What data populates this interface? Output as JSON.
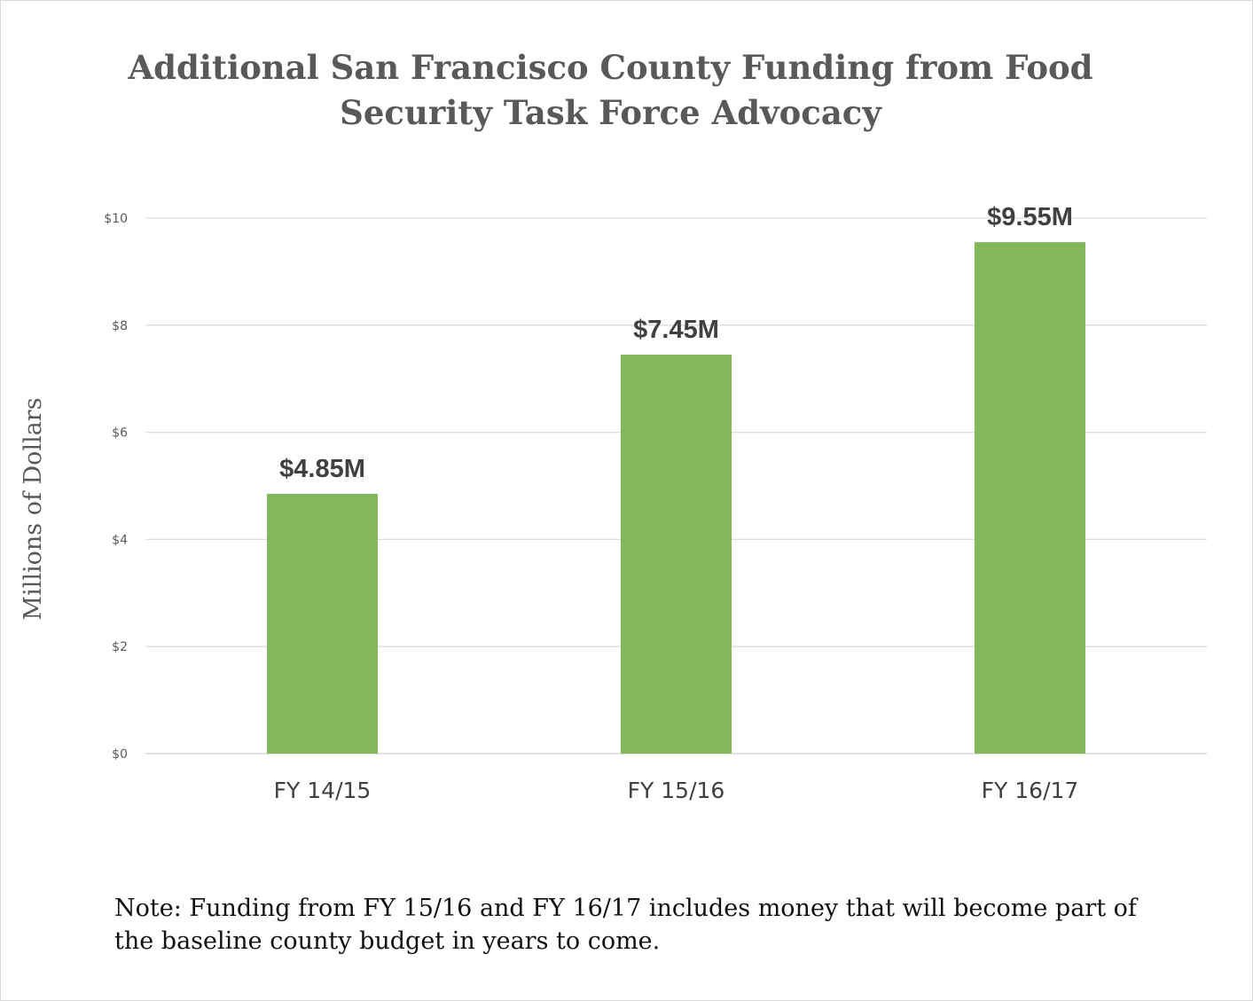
{
  "chart_data": {
    "type": "bar",
    "title": "Additional San Francisco County Funding from Food Security Task Force Advocacy",
    "ylabel": "Millions of Dollars",
    "xlabel": "",
    "categories": [
      "FY 14/15",
      "FY 15/16",
      "FY 16/17"
    ],
    "values": [
      4.85,
      7.45,
      9.55
    ],
    "data_labels": [
      "$4.85M",
      "$7.45M",
      "$9.55M"
    ],
    "ylim": [
      0,
      10
    ],
    "yticks": [
      0,
      2,
      4,
      6,
      8,
      10
    ],
    "ytick_labels": [
      "$0",
      "$2",
      "$4",
      "$6",
      "$8",
      "$10"
    ],
    "grid": true,
    "legend": "none",
    "bar_color": "#82b85b"
  },
  "note": "Note: Funding from FY 15/16 and FY 16/17 includes money that will become part of the baseline county budget in years to come."
}
